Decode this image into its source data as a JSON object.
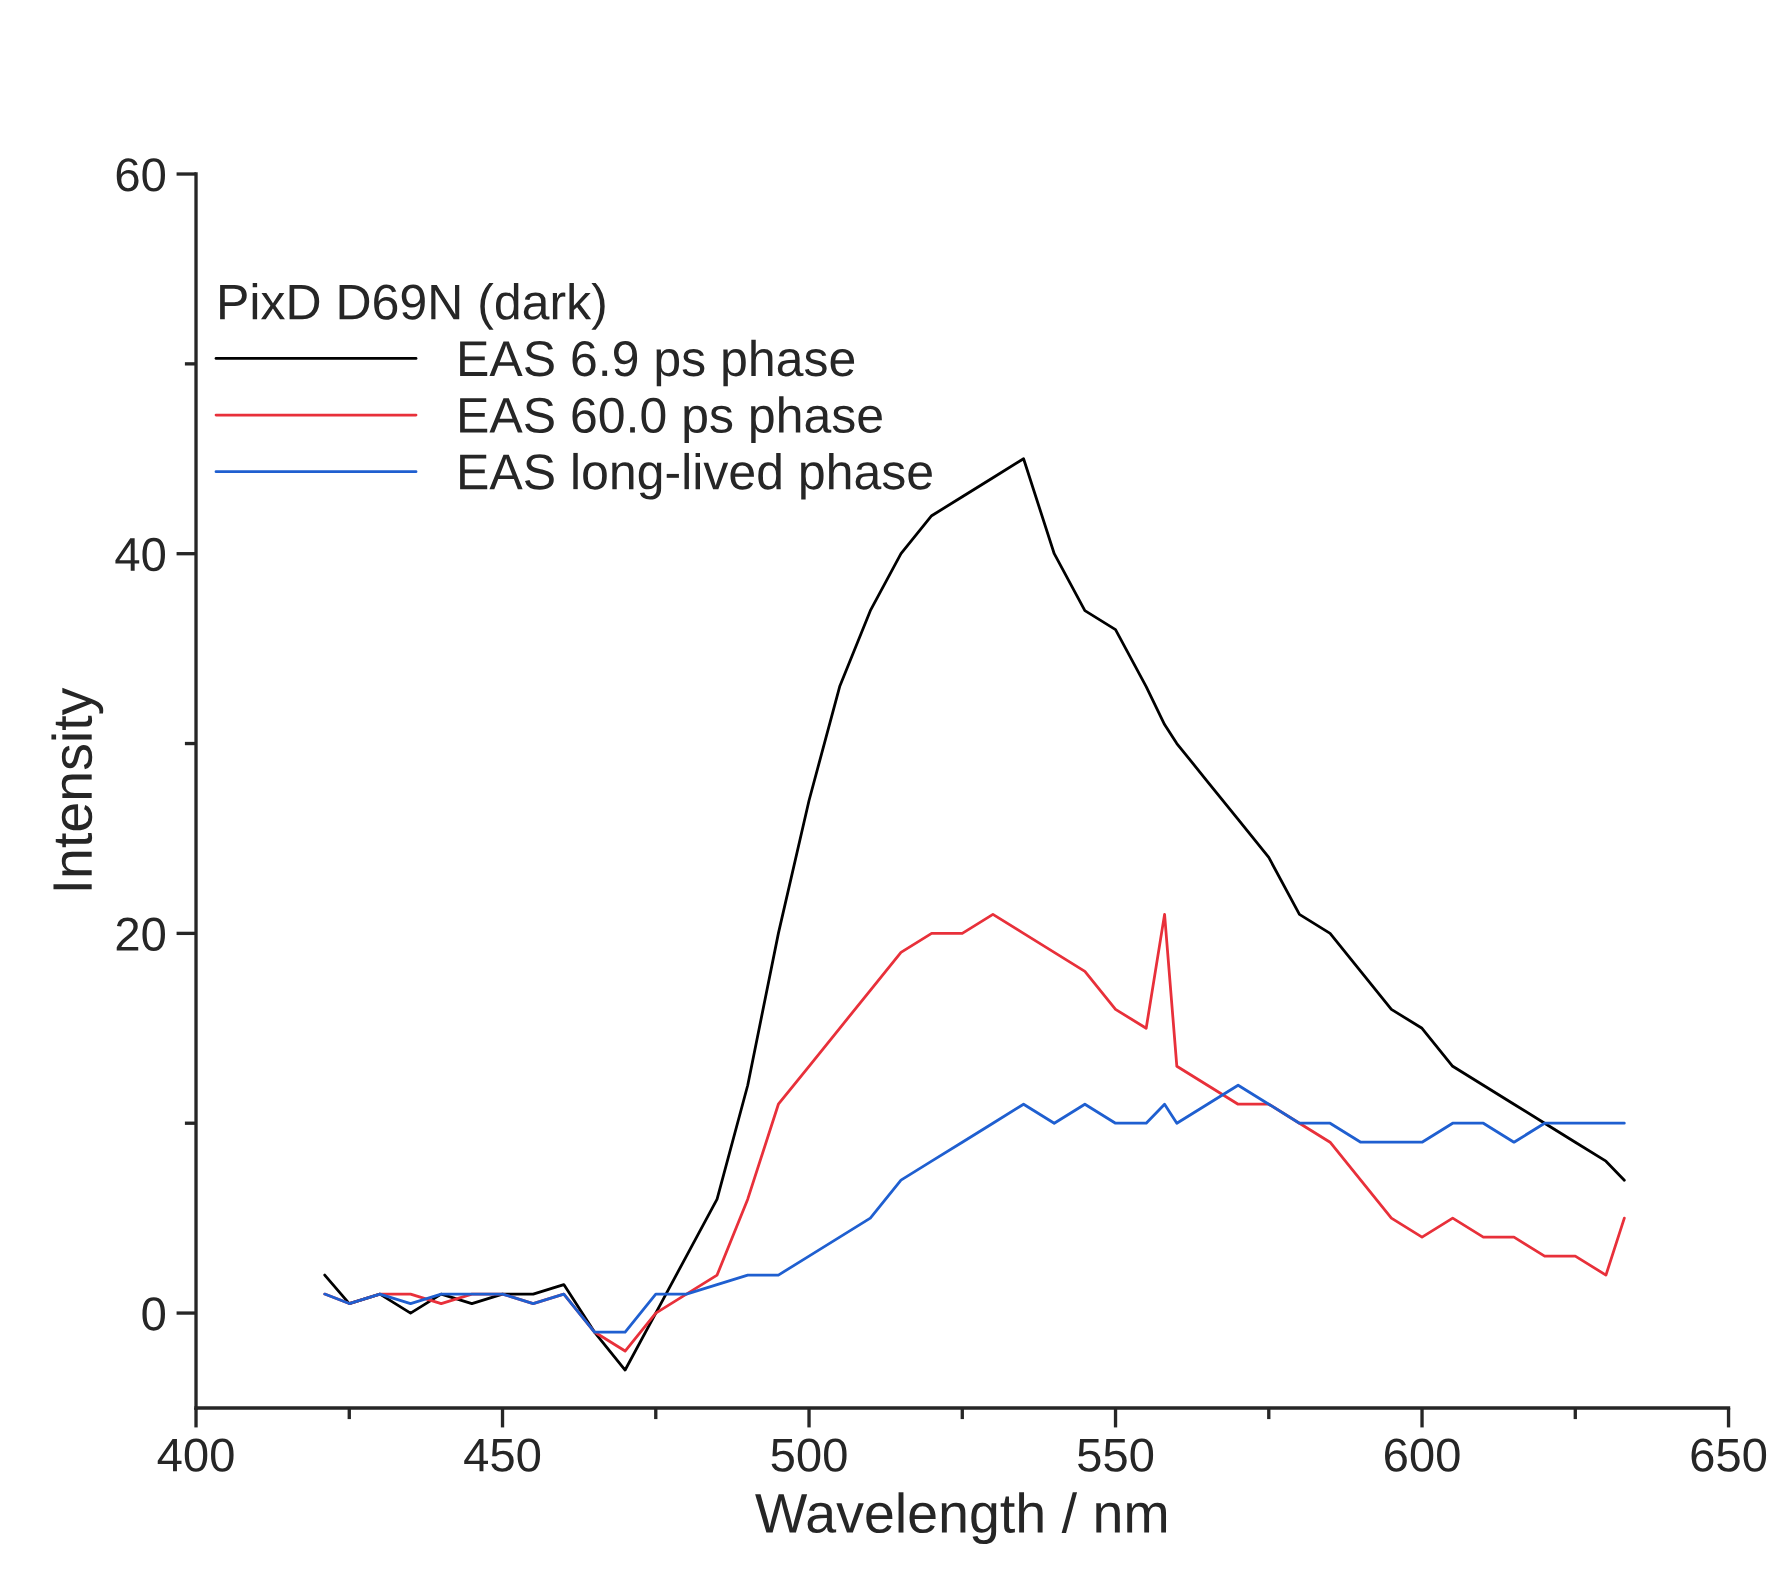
{
  "chart_data": {
    "type": "line",
    "xlabel": "Wavelength / nm",
    "ylabel": "Intensity",
    "legend_title": "PixD D69N (dark)",
    "xlim": [
      400,
      650
    ],
    "xticks": [
      400,
      450,
      500,
      550,
      600,
      650
    ],
    "ylim": [
      -5,
      60
    ],
    "yticks": [
      0,
      20,
      40,
      60
    ],
    "grid": false,
    "legend": "top left",
    "line_style": "solid",
    "marker": "none",
    "x": [
      421,
      425,
      430,
      435,
      440,
      445,
      450,
      455,
      460,
      465,
      470,
      475,
      480,
      485,
      490,
      495,
      500,
      505,
      510,
      515,
      520,
      525,
      530,
      535,
      540,
      545,
      550,
      555,
      558,
      560,
      565,
      570,
      575,
      580,
      585,
      590,
      595,
      600,
      605,
      610,
      615,
      620,
      625,
      630,
      633
    ],
    "series": [
      {
        "name": "EAS 6.9 ps phase",
        "color": "#000000",
        "values": [
          2,
          0.5,
          1,
          0,
          1,
          0.5,
          1,
          1,
          1.5,
          -1,
          -3,
          0,
          3,
          6,
          12,
          20,
          27,
          33,
          37,
          40,
          42,
          43,
          44,
          45,
          40,
          37,
          36,
          33,
          31,
          30,
          28,
          26,
          24,
          21,
          20,
          18,
          16,
          15,
          13,
          12,
          11,
          10,
          9,
          8,
          7
        ]
      },
      {
        "name": "EAS 60.0 ps phase",
        "color": "#e8303a",
        "values": [
          1,
          0.5,
          1,
          1,
          0.5,
          1,
          1,
          0.5,
          1,
          -1,
          -2,
          0,
          1,
          2,
          6,
          11,
          13,
          15,
          17,
          19,
          20,
          20,
          21,
          20,
          19,
          18,
          16,
          15,
          21,
          13,
          12,
          11,
          11,
          10,
          9,
          7,
          5,
          4,
          5,
          4,
          4,
          3,
          3,
          2,
          5
        ]
      },
      {
        "name": "EAS long-lived phase",
        "color": "#1f5fd0",
        "values": [
          1,
          0.5,
          1,
          0.5,
          1,
          1,
          1,
          0.5,
          1,
          -1,
          -1,
          1,
          1,
          1.5,
          2,
          2,
          3,
          4,
          5,
          7,
          8,
          9,
          10,
          11,
          10,
          11,
          10,
          10,
          11,
          10,
          11,
          12,
          11,
          10,
          10,
          9,
          9,
          9,
          10,
          10,
          9,
          10,
          10,
          10,
          10
        ]
      }
    ]
  }
}
